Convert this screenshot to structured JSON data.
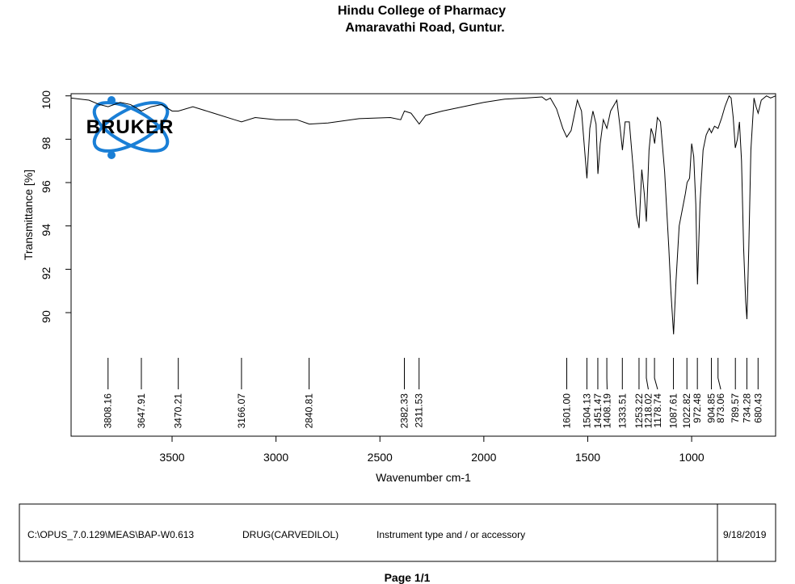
{
  "chart_data": {
    "type": "line",
    "title": "Hindu College of Pharmacy",
    "subtitle": "Amaravathi Road, Guntur.",
    "logo": "BRUKER",
    "xlabel": "Wavenumber cm-1",
    "ylabel": "Transmittance [%]",
    "color": "#000000",
    "xlim": [
      3986,
      596
    ],
    "ylim": [
      84.3,
      100.1
    ],
    "xticks": [
      3500,
      3000,
      2500,
      2000,
      1500,
      1000
    ],
    "yticks": [
      90,
      92,
      94,
      96,
      98,
      100
    ],
    "x": [
      3986,
      3900,
      3850,
      3808,
      3750,
      3700,
      3648,
      3600,
      3550,
      3500,
      3470,
      3400,
      3300,
      3200,
      3166,
      3100,
      3000,
      2900,
      2840,
      2750,
      2600,
      2450,
      2400,
      2382,
      2350,
      2311,
      2280,
      2200,
      2100,
      2000,
      1900,
      1800,
      1720,
      1700,
      1680,
      1650,
      1620,
      1601,
      1580,
      1550,
      1530,
      1504,
      1490,
      1475,
      1460,
      1451,
      1440,
      1425,
      1408,
      1390,
      1360,
      1345,
      1333,
      1320,
      1300,
      1280,
      1265,
      1253,
      1240,
      1228,
      1218,
      1205,
      1195,
      1185,
      1178,
      1165,
      1150,
      1130,
      1110,
      1100,
      1087,
      1075,
      1060,
      1040,
      1030,
      1022,
      1010,
      1000,
      990,
      980,
      972,
      960,
      945,
      930,
      915,
      905,
      890,
      873,
      855,
      840,
      820,
      810,
      800,
      790,
      780,
      770,
      760,
      750,
      740,
      734,
      725,
      715,
      700,
      690,
      680,
      665,
      640,
      620,
      596
    ],
    "values": [
      99.9,
      99.8,
      99.6,
      99.5,
      99.7,
      99.6,
      99.3,
      99.5,
      99.6,
      99.3,
      99.3,
      99.5,
      99.2,
      98.9,
      98.8,
      99.0,
      98.9,
      98.9,
      98.7,
      98.75,
      98.95,
      99.0,
      98.9,
      99.3,
      99.2,
      98.7,
      99.1,
      99.3,
      99.5,
      99.7,
      99.85,
      99.9,
      99.95,
      99.8,
      99.9,
      99.4,
      98.5,
      98.1,
      98.4,
      99.8,
      99.3,
      96.2,
      98.5,
      99.3,
      98.7,
      96.4,
      97.8,
      98.9,
      98.5,
      99.3,
      99.8,
      98.6,
      97.5,
      98.8,
      98.8,
      96.5,
      94.5,
      93.9,
      96.6,
      95.5,
      94.2,
      97.5,
      98.5,
      98.2,
      97.8,
      99.0,
      98.8,
      96.5,
      93.0,
      91.0,
      89.0,
      91.5,
      94.0,
      95.0,
      95.5,
      96.0,
      96.2,
      97.8,
      97.2,
      95.0,
      91.3,
      95.0,
      97.5,
      98.2,
      98.5,
      98.3,
      98.6,
      98.5,
      99.0,
      99.5,
      100.0,
      99.9,
      99.0,
      97.6,
      98.0,
      98.8,
      97.0,
      93.0,
      90.5,
      89.7,
      93.0,
      97.5,
      99.9,
      99.5,
      99.2,
      99.8,
      100.0,
      99.9,
      100.0
    ],
    "peaks": [
      3808.16,
      3647.91,
      3470.21,
      3166.07,
      2840.81,
      2382.33,
      2311.53,
      {
        "value": 1601.0,
        "label": "1601.00"
      },
      1504.13,
      1451.47,
      1408.19,
      1333.51,
      1253.22,
      1218.02,
      1178.74,
      1087.61,
      1022.82,
      972.48,
      904.85,
      873.06,
      789.57,
      734.28,
      680.43
    ]
  },
  "footer": {
    "path": "C:\\OPUS_7.0.129\\MEAS\\BAP-W0.613",
    "sample": "DRUG(CARVEDILOL)",
    "instrument": "Instrument type and / or accessory",
    "date": "9/18/2019"
  },
  "page": "Page 1/1"
}
